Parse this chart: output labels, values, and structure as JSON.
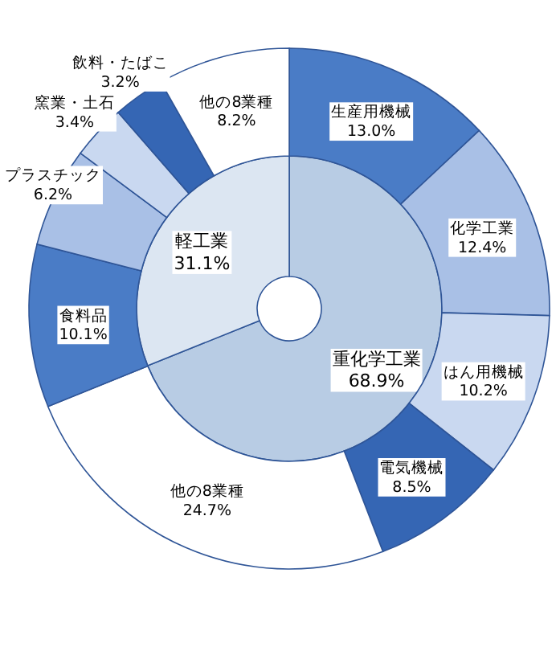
{
  "chart_data": [
    {
      "type": "donut",
      "categories": [
        "重化学工業",
        "軽工業"
      ],
      "values": [
        68.9,
        31.1
      ],
      "value_labels": [
        "68.9%",
        "31.1%"
      ],
      "colors": [
        "#b8cce4",
        "#dce6f2"
      ]
    },
    {
      "type": "donut",
      "categories": [
        "生産用機械",
        "化学工業",
        "はん用機械",
        "電気機械",
        "他の8業種",
        "食料品",
        "プラスチック",
        "窯業・土石",
        "飲料・たばこ",
        "他の8業種"
      ],
      "values": [
        13.0,
        12.4,
        10.2,
        8.5,
        24.7,
        10.1,
        6.2,
        3.4,
        3.2,
        8.2
      ],
      "value_labels": [
        "13.0%",
        "12.4%",
        "10.2%",
        "8.5%",
        "24.7%",
        "10.1%",
        "6.2%",
        "3.4%",
        "3.2%",
        "8.2%"
      ],
      "colors": [
        "#4a7cc6",
        "#a9c0e6",
        "#c9d8f0",
        "#3566b4",
        "#ffffff",
        "#4a7cc6",
        "#a9c0e6",
        "#c9d8f0",
        "#3566b4",
        "#ffffff"
      ]
    }
  ]
}
